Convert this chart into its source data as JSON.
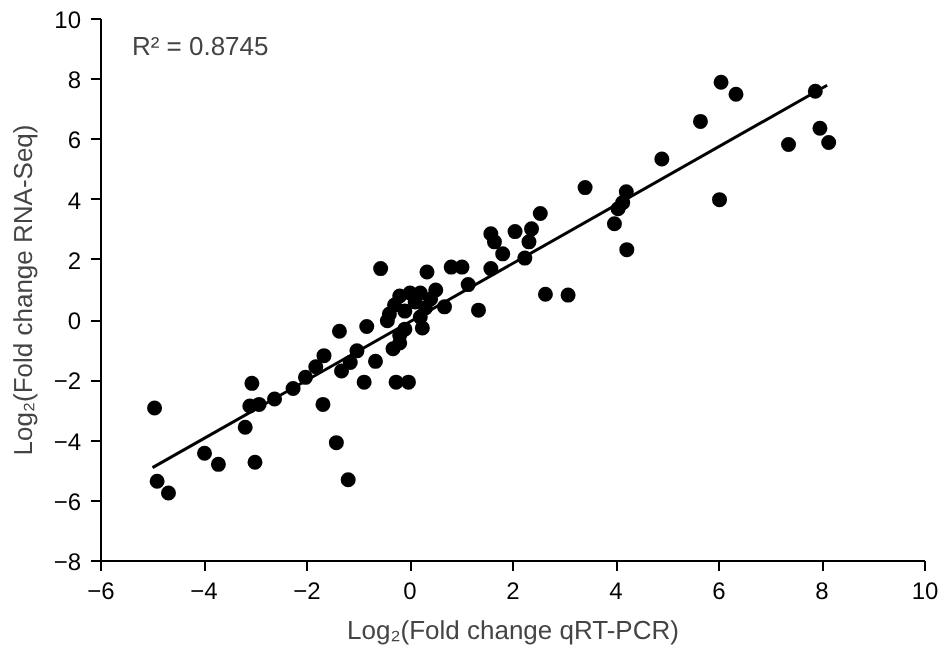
{
  "chart_data": {
    "type": "scatter",
    "xlabel": "Log₂(Fold change qRT-PCR)",
    "ylabel": "Log₂(Fold change RNA-Seq)",
    "annotations": [
      "R² = 0.8745"
    ],
    "xlim": [
      -6,
      10
    ],
    "ylim": [
      -8,
      10
    ],
    "xticks": [
      -6,
      -4,
      -2,
      0,
      2,
      4,
      6,
      8,
      10
    ],
    "yticks": [
      -8,
      -6,
      -4,
      -2,
      0,
      2,
      4,
      6,
      8,
      10
    ],
    "grid": false,
    "series": [
      {
        "marker": "circle",
        "color": "#000000",
        "x": [
          6.04,
          6.33,
          7.87,
          7.96,
          8.13,
          7.35,
          5.64,
          4.89,
          6.01,
          3.4,
          4.2,
          4.13,
          4.04,
          3.97,
          4.21,
          2.53,
          2.04,
          2.36,
          2.31,
          2.23,
          1.8,
          2.63,
          3.07,
          -0.57,
          0.33,
          0.8,
          1.01,
          1.57,
          1.64,
          1.57,
          1.13,
          1.33,
          -1.37,
          -0.84,
          -4.96,
          -4.91,
          -4.69,
          -3.99,
          -3.72,
          -3.2,
          -3.01,
          -3.07,
          -3.11,
          -2.93,
          -2.63,
          -2.27,
          -2.03,
          -1.83,
          -1.67,
          -1.69,
          -1.43,
          -1.2,
          -1.33,
          -1.16,
          -1.03,
          -0.89,
          -0.67,
          -0.33,
          -0.2,
          -0.27,
          -0.03,
          0.24,
          0.67,
          -0.44,
          -0.4,
          -0.3,
          -0.2,
          -0.1,
          0.1,
          0.2,
          0.3,
          0.4,
          0.5,
          -0.1,
          0.2,
          -0.2,
          0
        ],
        "values": [
          7.9,
          7.5,
          7.6,
          6.37,
          5.9,
          5.83,
          6.6,
          5.35,
          4.0,
          4.4,
          4.26,
          3.9,
          3.7,
          3.2,
          2.34,
          3.54,
          2.94,
          3.03,
          2.6,
          2.06,
          2.2,
          0.86,
          0.83,
          1.71,
          1.6,
          1.76,
          1.76,
          2.87,
          2.6,
          1.71,
          1.18,
          0.33,
          -0.37,
          -0.21,
          -2.92,
          -5.35,
          -5.74,
          -4.42,
          -4.79,
          -3.56,
          -4.72,
          -2.1,
          -2.85,
          -2.8,
          -2.62,
          -2.27,
          -1.9,
          -1.55,
          -1.18,
          -2.8,
          -4.07,
          -5.3,
          -1.69,
          -1.41,
          -1.02,
          -2.06,
          -1.37,
          -0.95,
          -0.76,
          -2.06,
          -2.06,
          -0.26,
          0.44,
          -0.02,
          0.2,
          0.5,
          0.8,
          0.3,
          0.6,
          0.9,
          0.4,
          0.7,
          1.0,
          -0.3,
          0.1,
          -0.5,
          0.9
        ]
      },
      {
        "type": "line",
        "marker": "none",
        "color": "#000000",
        "x": [
          -5,
          8.1
        ],
        "values": [
          -4.9,
          7.8
        ]
      }
    ]
  }
}
